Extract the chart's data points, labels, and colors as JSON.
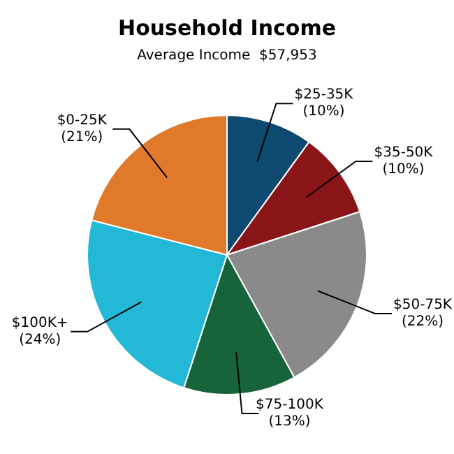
{
  "chart_data": {
    "type": "pie",
    "title": "Household Income",
    "subtitle": "Average Income  $57,953",
    "categories": [
      "$25-35K",
      "$35-50K",
      "$50-75K",
      "$75-100K",
      "$100K+",
      "$0-25K"
    ],
    "values": [
      10,
      10,
      22,
      13,
      24,
      21
    ],
    "value_labels": [
      "(10%)",
      "(10%)",
      "(22%)",
      "(13%)",
      "(24%)",
      "(21%)"
    ],
    "colors": [
      "#0e4a70",
      "#8a1518",
      "#8a8a8a",
      "#17633a",
      "#22b8d6",
      "#e07a2a"
    ],
    "legend": false
  }
}
